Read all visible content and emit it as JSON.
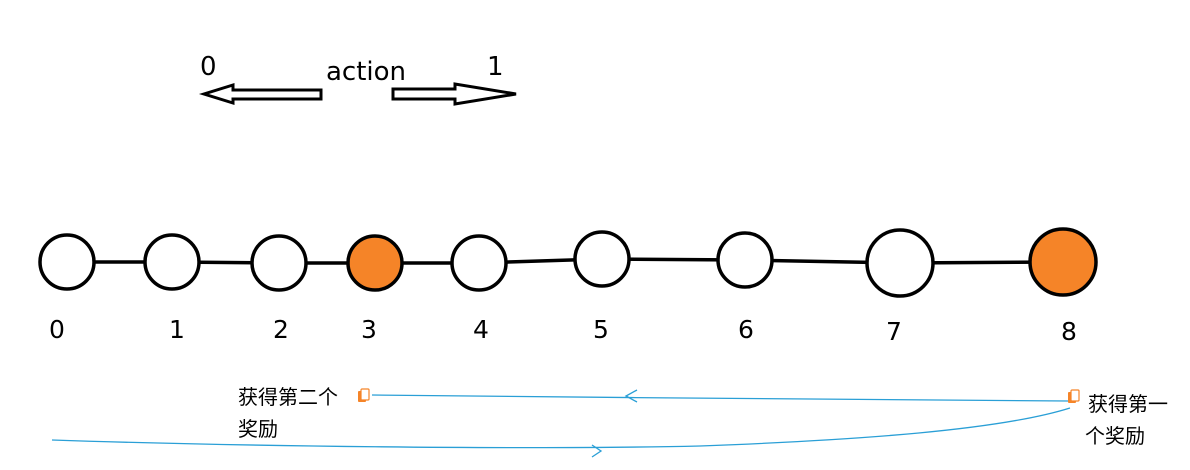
{
  "legend": {
    "title": "action",
    "left_value": "0",
    "right_value": "1"
  },
  "nodes": [
    {
      "label": "0",
      "rewarded": false
    },
    {
      "label": "1",
      "rewarded": false
    },
    {
      "label": "2",
      "rewarded": false
    },
    {
      "label": "3",
      "rewarded": true
    },
    {
      "label": "4",
      "rewarded": false
    },
    {
      "label": "5",
      "rewarded": false
    },
    {
      "label": "6",
      "rewarded": false
    },
    {
      "label": "7",
      "rewarded": false
    },
    {
      "label": "8",
      "rewarded": true
    }
  ],
  "annotations": {
    "second_reward": [
      "获得第二个",
      "奖励"
    ],
    "first_reward": [
      "获得第一",
      "个奖励"
    ]
  },
  "colors": {
    "reward_fill": "#f58428",
    "node_fill": "#ffffff",
    "stroke": "#000000",
    "path": "#2a9fd6"
  }
}
